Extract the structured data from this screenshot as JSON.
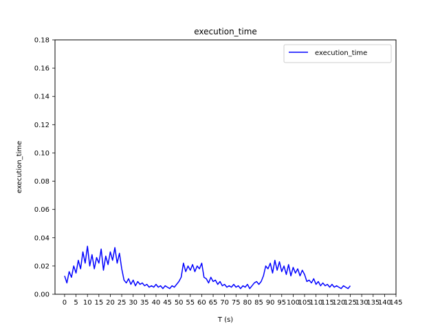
{
  "chart_data": {
    "type": "line",
    "title": "execution_time",
    "xlabel": "T (s)",
    "ylabel": "execution_time",
    "xlim": [
      -4.2,
      145
    ],
    "ylim": [
      0,
      0.18
    ],
    "x_ticks": [
      0,
      5,
      10,
      15,
      20,
      25,
      30,
      35,
      40,
      45,
      50,
      55,
      60,
      65,
      70,
      75,
      80,
      85,
      90,
      95,
      100,
      105,
      110,
      115,
      120,
      125,
      130,
      135,
      140,
      145
    ],
    "x_tick_labels": [
      "0",
      "5",
      "10",
      "15",
      "20",
      "25",
      "30",
      "35",
      "40",
      "45",
      "50",
      "55",
      "60",
      "65",
      "70",
      "75",
      "80",
      "85",
      "90",
      "95",
      "100",
      "105",
      "110",
      "115",
      "120",
      "125",
      "130",
      "135",
      "140",
      "145"
    ],
    "y_ticks": [
      0.0,
      0.02,
      0.04,
      0.06,
      0.08,
      0.1,
      0.12,
      0.14,
      0.16,
      0.18
    ],
    "y_tick_labels": [
      "0.00",
      "0.02",
      "0.04",
      "0.06",
      "0.08",
      "0.10",
      "0.12",
      "0.14",
      "0.16",
      "0.18"
    ],
    "grid": false,
    "legend": {
      "placement": "top-right",
      "entries": [
        "execution_time"
      ]
    },
    "series": [
      {
        "name": "execution_time",
        "color": "#0000ff",
        "x": [
          0,
          1,
          2,
          3,
          4,
          5,
          6,
          7,
          8,
          9,
          10,
          11,
          12,
          13,
          14,
          15,
          16,
          17,
          18,
          19,
          20,
          21,
          22,
          23,
          24,
          25,
          26,
          27,
          28,
          29,
          30,
          31,
          32,
          33,
          34,
          35,
          36,
          37,
          38,
          39,
          40,
          41,
          42,
          43,
          44,
          45,
          46,
          47,
          48,
          49,
          50,
          51,
          52,
          53,
          54,
          55,
          56,
          57,
          58,
          59,
          60,
          61,
          62,
          63,
          64,
          65,
          66,
          67,
          68,
          69,
          70,
          71,
          72,
          73,
          74,
          75,
          76,
          77,
          78,
          79,
          80,
          81,
          82,
          83,
          84,
          85,
          86,
          87,
          88,
          89,
          90,
          91,
          92,
          93,
          94,
          95,
          96,
          97,
          98,
          99,
          100,
          101,
          102,
          103,
          104,
          105,
          106,
          107,
          108,
          109,
          110,
          111,
          112,
          113,
          114,
          115,
          116,
          117,
          118,
          119,
          120,
          121,
          122,
          123,
          124,
          125
        ],
        "y": [
          0.013,
          0.008,
          0.016,
          0.012,
          0.02,
          0.015,
          0.024,
          0.018,
          0.03,
          0.022,
          0.034,
          0.02,
          0.028,
          0.018,
          0.026,
          0.022,
          0.032,
          0.017,
          0.027,
          0.021,
          0.03,
          0.024,
          0.033,
          0.022,
          0.029,
          0.018,
          0.01,
          0.008,
          0.011,
          0.007,
          0.01,
          0.006,
          0.009,
          0.007,
          0.008,
          0.006,
          0.007,
          0.005,
          0.006,
          0.005,
          0.007,
          0.005,
          0.006,
          0.004,
          0.006,
          0.005,
          0.004,
          0.006,
          0.005,
          0.007,
          0.009,
          0.012,
          0.022,
          0.016,
          0.02,
          0.017,
          0.021,
          0.016,
          0.02,
          0.018,
          0.022,
          0.012,
          0.011,
          0.008,
          0.012,
          0.009,
          0.01,
          0.007,
          0.009,
          0.006,
          0.007,
          0.005,
          0.006,
          0.005,
          0.007,
          0.005,
          0.006,
          0.004,
          0.006,
          0.005,
          0.007,
          0.004,
          0.006,
          0.008,
          0.009,
          0.007,
          0.009,
          0.013,
          0.02,
          0.018,
          0.022,
          0.015,
          0.024,
          0.017,
          0.023,
          0.016,
          0.02,
          0.014,
          0.021,
          0.013,
          0.019,
          0.015,
          0.018,
          0.013,
          0.017,
          0.014,
          0.009,
          0.01,
          0.008,
          0.011,
          0.007,
          0.009,
          0.006,
          0.008,
          0.006,
          0.007,
          0.005,
          0.007,
          0.005,
          0.006,
          0.005,
          0.004,
          0.006,
          0.005,
          0.004,
          0.006
        ]
      }
    ]
  }
}
